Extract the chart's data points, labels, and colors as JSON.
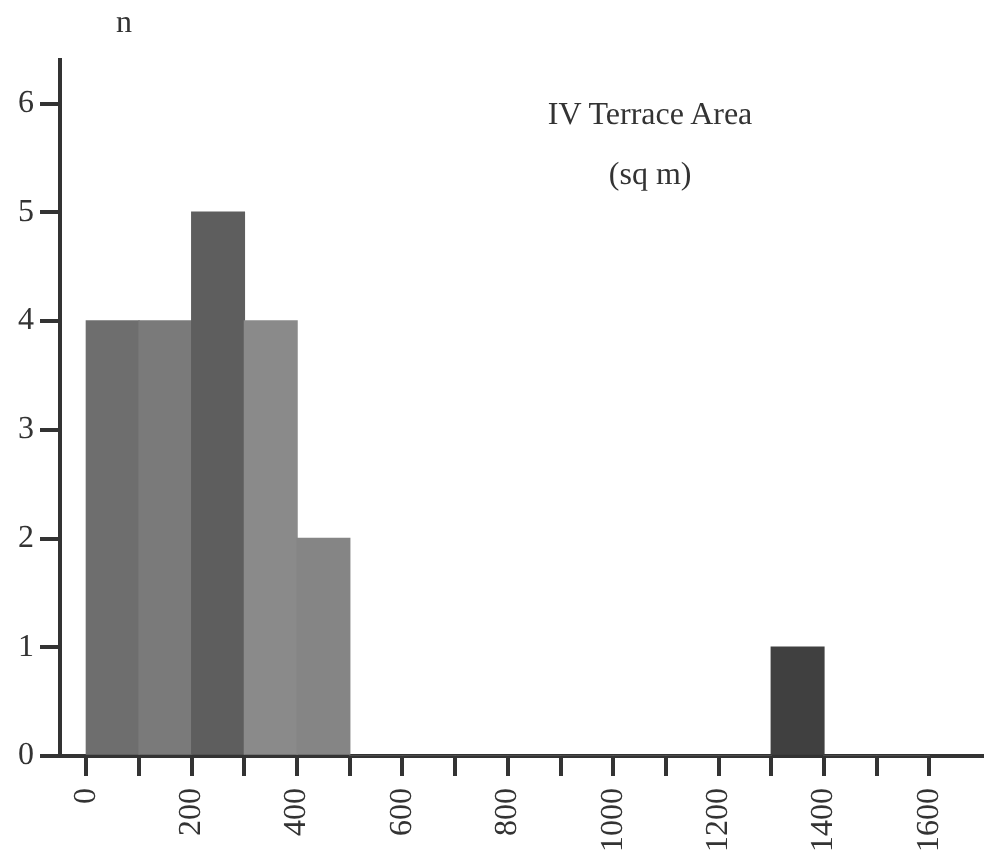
{
  "chart_data": {
    "type": "histogram",
    "title": "IV Terrace Area",
    "subtitle": "(sq m)",
    "ylabel": "n",
    "bins": [
      0,
      100,
      200,
      300,
      400,
      500,
      600,
      700,
      800,
      900,
      1000,
      1100,
      1200,
      1300,
      1400,
      1500,
      1600
    ],
    "values": [
      4,
      4,
      5,
      4,
      2,
      0,
      0,
      0,
      0,
      0,
      0,
      0,
      0,
      1,
      0,
      0
    ],
    "colors": [
      "#6e6e6e",
      "#7a7a7a",
      "#5e5e5e",
      "#8a8a8a",
      "#858585",
      "#555555",
      "#555555",
      "#555555",
      "#555555",
      "#555555",
      "#555555",
      "#555555",
      "#555555",
      "#404040",
      "#555555",
      "#555555"
    ],
    "xlim": [
      -50,
      1700
    ],
    "ylim": [
      0,
      6.4
    ],
    "xticks": [
      0,
      {
        "value": 100,
        "label": null
      },
      200,
      {
        "value": 300,
        "label": null
      },
      400,
      {
        "value": 500,
        "label": null
      },
      600,
      {
        "value": 700,
        "label": null
      },
      800,
      {
        "value": 900,
        "label": null
      },
      1000,
      {
        "value": 1100,
        "label": null
      },
      1200,
      {
        "value": 1300,
        "label": null
      },
      1400,
      {
        "value": 1500,
        "label": null
      },
      1600
    ],
    "yticks": [
      0,
      1,
      2,
      3,
      4,
      5,
      6
    ],
    "grid": false,
    "legend": false
  }
}
